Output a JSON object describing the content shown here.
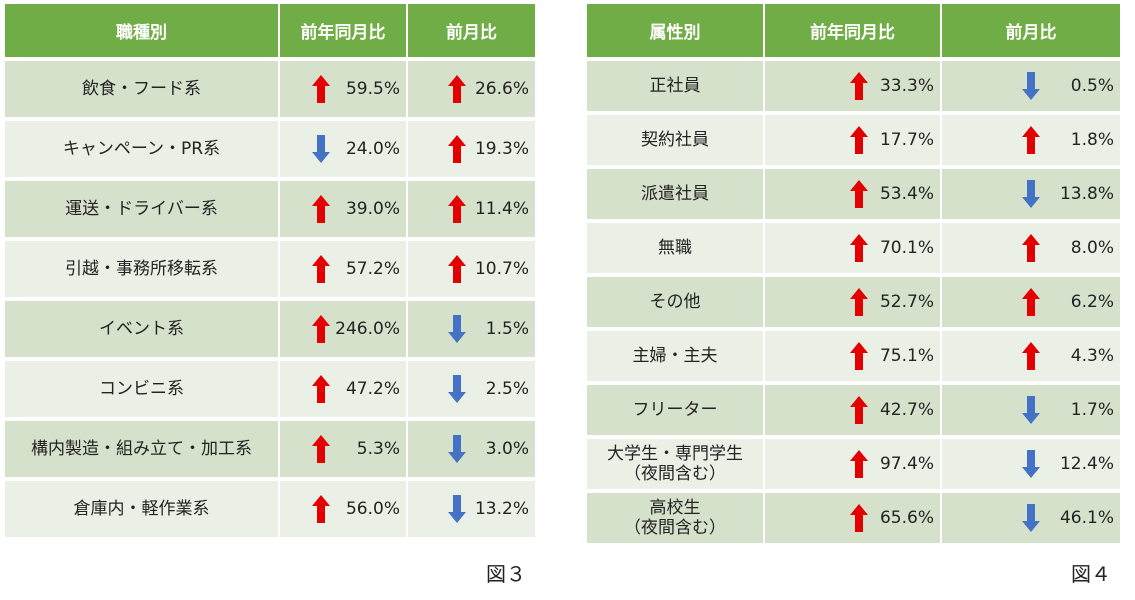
{
  "colors": {
    "header": "#70ad47",
    "row_dark": "#d6e1cc",
    "row_light": "#ebf0e7",
    "up": "#e30000",
    "down": "#4472c4"
  },
  "table1": {
    "headers": [
      "職種別",
      "前年同月比",
      "前月比"
    ],
    "rows": [
      {
        "label": "飲食・フード系",
        "yoy": {
          "dir": "up",
          "value": "59.5%"
        },
        "mom": {
          "dir": "up",
          "value": "26.6%"
        }
      },
      {
        "label": "キャンペーン・PR系",
        "yoy": {
          "dir": "down",
          "value": "24.0%"
        },
        "mom": {
          "dir": "up",
          "value": "19.3%"
        }
      },
      {
        "label": "運送・ドライバー系",
        "yoy": {
          "dir": "up",
          "value": "39.0%"
        },
        "mom": {
          "dir": "up",
          "value": "11.4%"
        }
      },
      {
        "label": "引越・事務所移転系",
        "yoy": {
          "dir": "up",
          "value": "57.2%"
        },
        "mom": {
          "dir": "up",
          "value": "10.7%"
        }
      },
      {
        "label": "イベント系",
        "yoy": {
          "dir": "up",
          "value": "246.0%"
        },
        "mom": {
          "dir": "down",
          "value": "1.5%"
        }
      },
      {
        "label": "コンビニ系",
        "yoy": {
          "dir": "up",
          "value": "47.2%"
        },
        "mom": {
          "dir": "down",
          "value": "2.5%"
        }
      },
      {
        "label": "構内製造・組み立て・加工系",
        "yoy": {
          "dir": "up",
          "value": "5.3%"
        },
        "mom": {
          "dir": "down",
          "value": "3.0%"
        }
      },
      {
        "label": "倉庫内・軽作業系",
        "yoy": {
          "dir": "up",
          "value": "56.0%"
        },
        "mom": {
          "dir": "down",
          "value": "13.2%"
        }
      }
    ],
    "caption": "図３"
  },
  "table2": {
    "headers": [
      "属性別",
      "前年同月比",
      "前月比"
    ],
    "rows": [
      {
        "label": "正社員",
        "yoy": {
          "dir": "up",
          "value": "33.3%"
        },
        "mom": {
          "dir": "down",
          "value": "0.5%"
        }
      },
      {
        "label": "契約社員",
        "yoy": {
          "dir": "up",
          "value": "17.7%"
        },
        "mom": {
          "dir": "up",
          "value": "1.8%"
        }
      },
      {
        "label": "派遣社員",
        "yoy": {
          "dir": "up",
          "value": "53.4%"
        },
        "mom": {
          "dir": "down",
          "value": "13.8%"
        }
      },
      {
        "label": "無職",
        "yoy": {
          "dir": "up",
          "value": "70.1%"
        },
        "mom": {
          "dir": "up",
          "value": "8.0%"
        }
      },
      {
        "label": "その他",
        "yoy": {
          "dir": "up",
          "value": "52.7%"
        },
        "mom": {
          "dir": "up",
          "value": "6.2%"
        }
      },
      {
        "label": "主婦・主夫",
        "yoy": {
          "dir": "up",
          "value": "75.1%"
        },
        "mom": {
          "dir": "up",
          "value": "4.3%"
        }
      },
      {
        "label": "フリーター",
        "yoy": {
          "dir": "up",
          "value": "42.7%"
        },
        "mom": {
          "dir": "down",
          "value": "1.7%"
        }
      },
      {
        "label": "大学生・専門学生\n（夜間含む）",
        "yoy": {
          "dir": "up",
          "value": "97.4%"
        },
        "mom": {
          "dir": "down",
          "value": "12.4%"
        }
      },
      {
        "label": "高校生\n（夜間含む）",
        "yoy": {
          "dir": "up",
          "value": "65.6%"
        },
        "mom": {
          "dir": "down",
          "value": "46.1%"
        }
      }
    ],
    "caption": "図４"
  }
}
